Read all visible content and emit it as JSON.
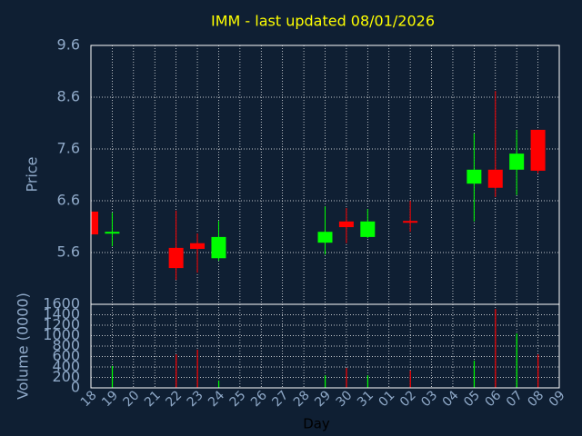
{
  "chart_data": [
    {
      "type": "candlestick",
      "title": "IMM - last updated 08/01/2026",
      "ylabel": "Price",
      "categories": [
        "18",
        "19",
        "20",
        "21",
        "22",
        "23",
        "24",
        "25",
        "26",
        "27",
        "28",
        "29",
        "30",
        "31",
        "01",
        "02",
        "03",
        "04",
        "05",
        "06",
        "07",
        "08",
        "09"
      ],
      "open": [
        6.39,
        5.98,
        null,
        null,
        5.69,
        5.78,
        5.49,
        null,
        null,
        null,
        null,
        5.79,
        6.2,
        5.9,
        null,
        6.21,
        null,
        null,
        6.93,
        7.2,
        7.2,
        7.97,
        null
      ],
      "high": [
        6.39,
        6.37,
        null,
        null,
        6.41,
        5.97,
        6.21,
        null,
        null,
        null,
        null,
        6.49,
        6.46,
        6.44,
        null,
        6.6,
        null,
        null,
        7.9,
        8.72,
        7.97,
        7.97,
        null
      ],
      "low": [
        5.95,
        5.72,
        null,
        null,
        5.07,
        5.21,
        5.44,
        null,
        null,
        null,
        null,
        5.56,
        5.78,
        5.88,
        null,
        6.0,
        null,
        null,
        6.2,
        6.67,
        6.71,
        7.13,
        null
      ],
      "close": [
        5.95,
        6.0,
        null,
        null,
        5.3,
        5.67,
        5.9,
        null,
        null,
        null,
        null,
        6.0,
        6.09,
        6.2,
        null,
        6.2,
        null,
        null,
        7.2,
        6.85,
        7.51,
        7.18,
        null
      ],
      "up_color": "#00ff00",
      "down_color": "#ff0000",
      "ylim": [
        4.6,
        9.6
      ],
      "yticks": [
        5.6,
        6.6,
        7.6,
        8.6,
        9.6
      ],
      "grid": true
    },
    {
      "type": "bar",
      "ylabel": "Volume (0000)",
      "xlabel": "Day",
      "values": [
        0,
        420,
        null,
        null,
        640,
        730,
        140,
        null,
        null,
        null,
        null,
        240,
        380,
        240,
        null,
        330,
        null,
        null,
        520,
        1510,
        1040,
        640,
        null
      ],
      "ylim": [
        0,
        1600
      ],
      "yticks": [
        0,
        200,
        400,
        600,
        800,
        1000,
        1200,
        1400,
        1600
      ],
      "grid": true
    }
  ]
}
